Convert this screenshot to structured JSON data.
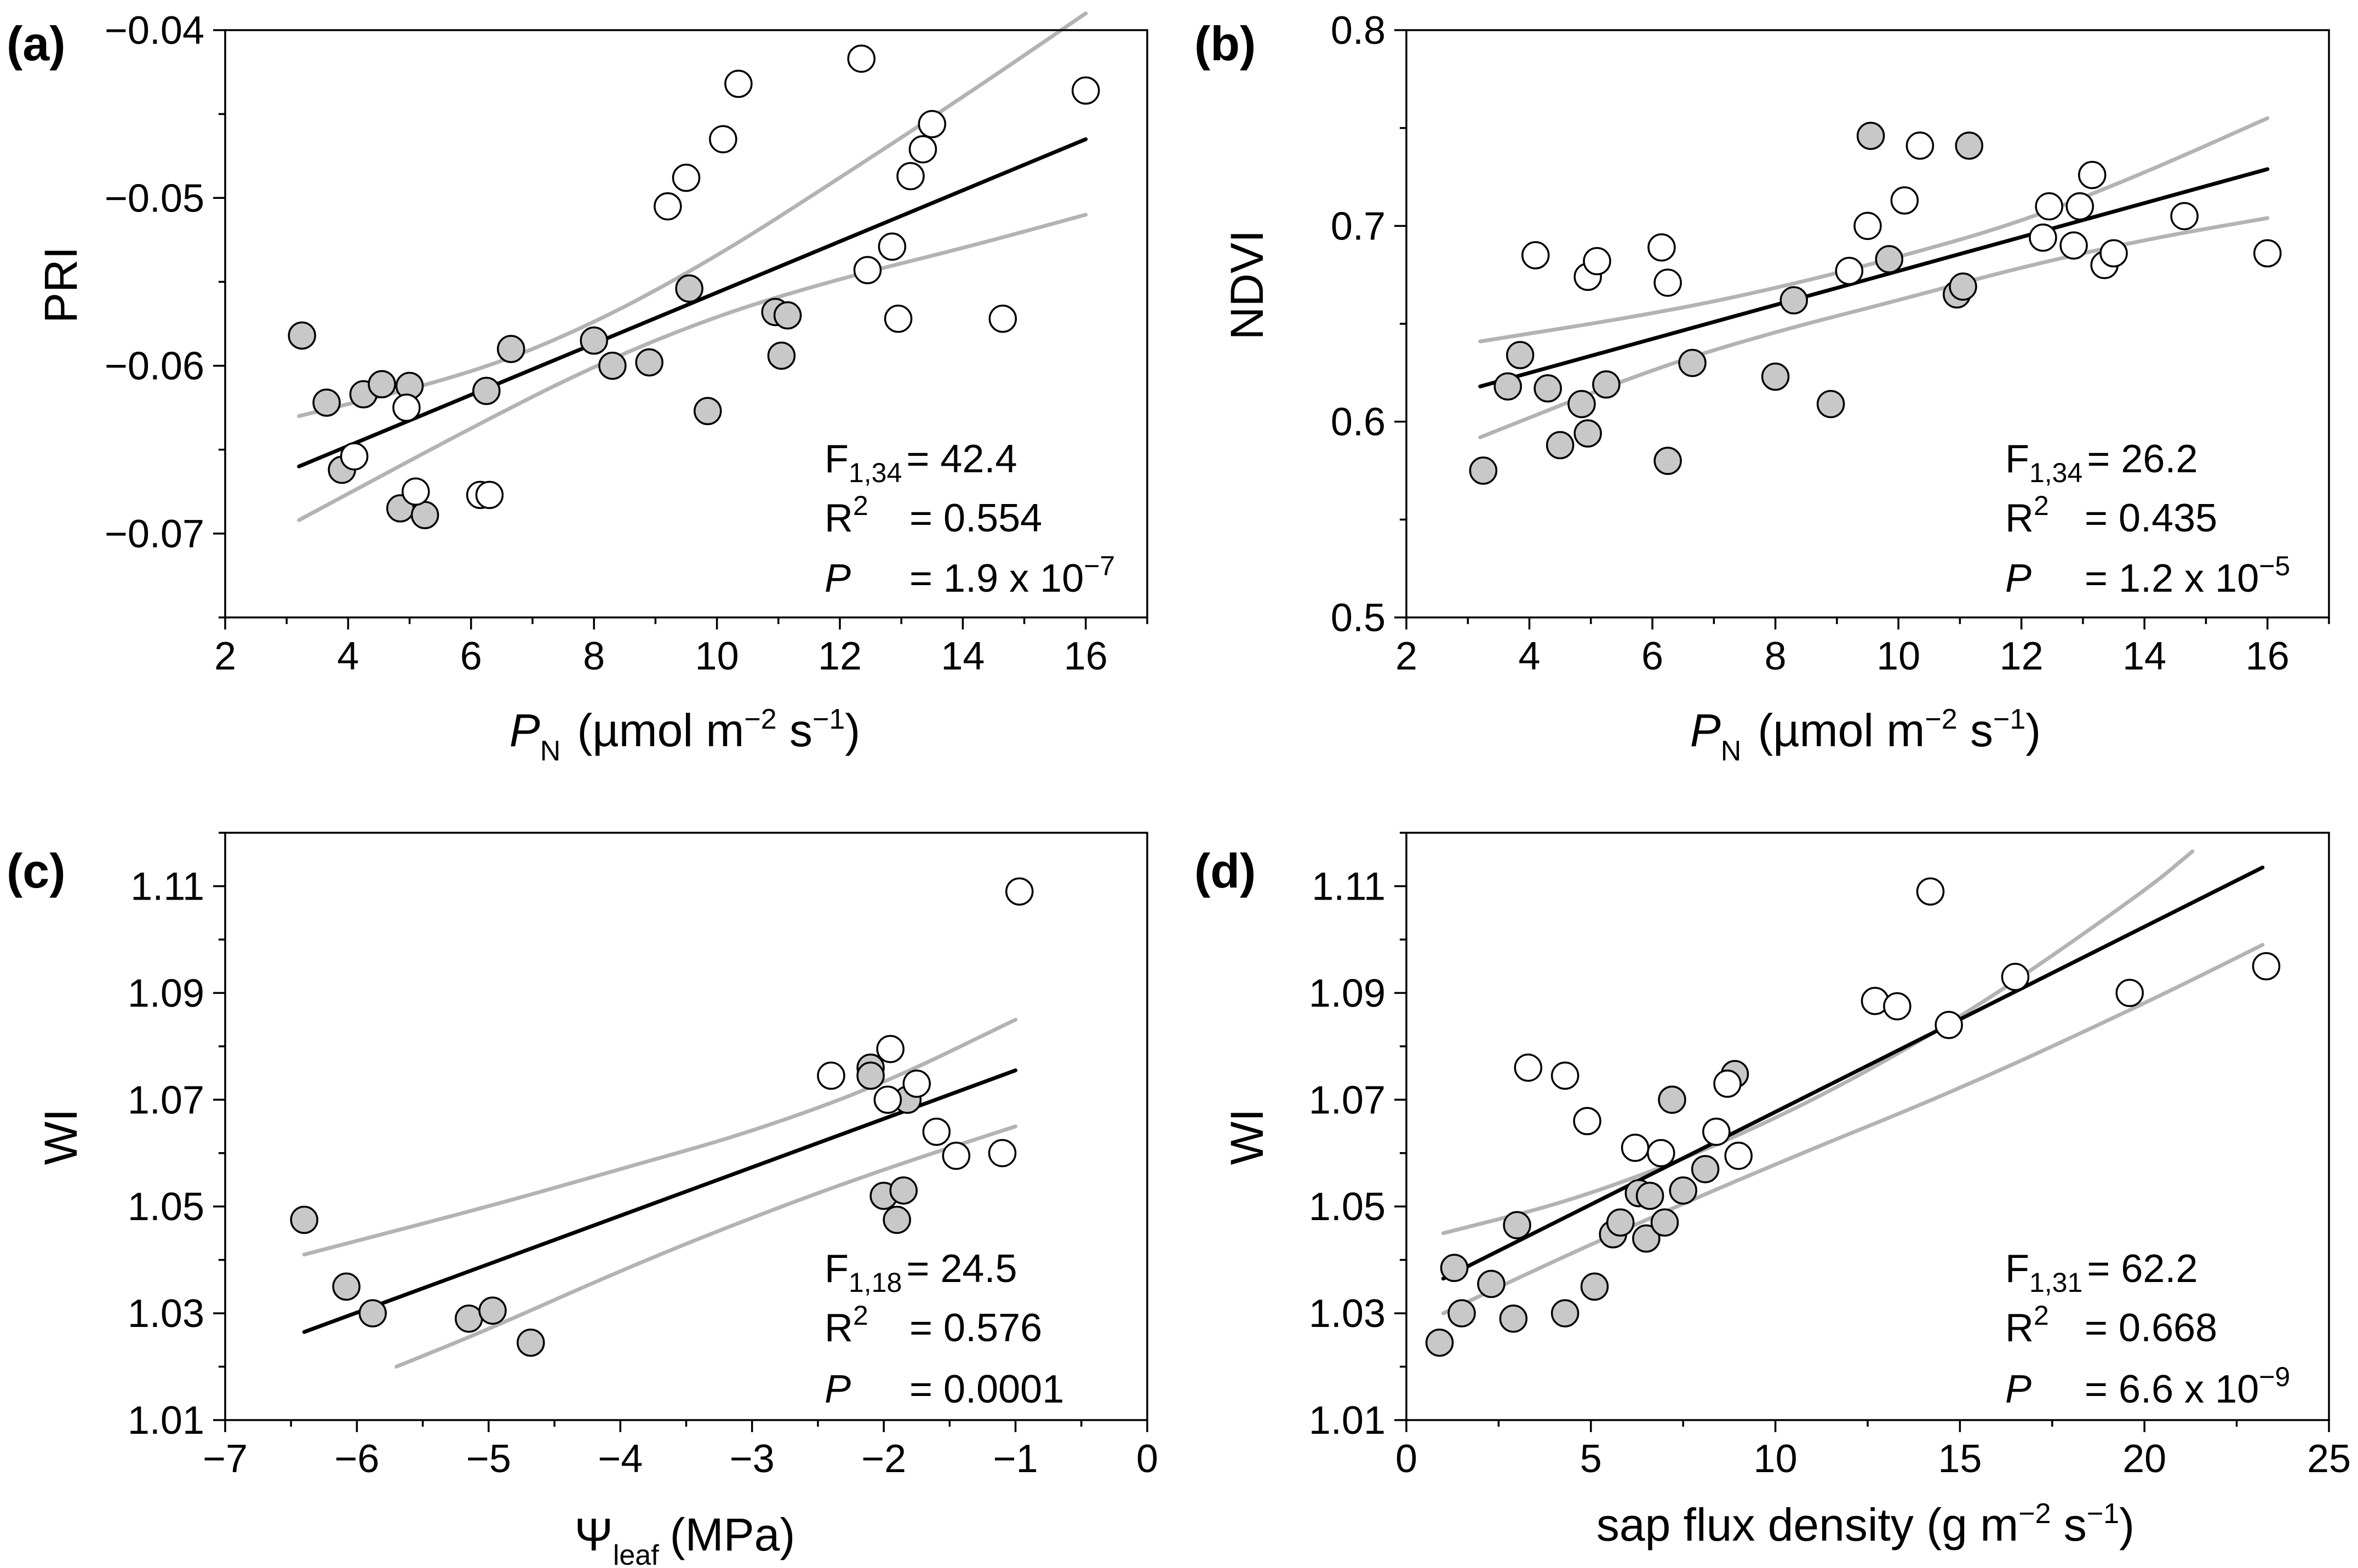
{
  "colors": {
    "open": "#ffffff",
    "filled": "#c8c8c8",
    "fit": "#000000",
    "ci": "#b3b3b3"
  },
  "chart_data": [
    {
      "panel": "(a)",
      "type": "scatter",
      "xlabel_main": "P",
      "xlabel_sub": "N",
      "xlabel_rest": "(µmol m",
      "xlabel_sup1": "−2",
      "xlabel_mid": " s",
      "xlabel_sup2": "−1",
      "xlabel_end": ")",
      "ylabel": "PRI",
      "xlim": [
        2,
        17
      ],
      "ylim": [
        -0.075,
        -0.04
      ],
      "xticks": [
        2,
        4,
        6,
        8,
        10,
        12,
        14,
        16
      ],
      "xtick_labels": [
        "2",
        "4",
        "6",
        "8",
        "10",
        "12",
        "14",
        "16"
      ],
      "yticks": [
        -0.07,
        -0.06,
        -0.05,
        -0.04
      ],
      "ytick_labels": [
        "−0.07",
        "−0.06",
        "−0.05",
        "−0.04"
      ],
      "stats": {
        "f_label": "F",
        "f_sub": "1,34",
        "f_value": "= 42.4",
        "r_label": "R",
        "r_sup": "2",
        "r_value": "= 0.554",
        "p_label": "P",
        "p_value": "= 1.9 x 10",
        "p_sup": "−7"
      },
      "fit": {
        "x": [
          3.2,
          16.0
        ],
        "y": [
          -0.066,
          -0.0465
        ]
      },
      "ci_upper": {
        "x": [
          3.2,
          6,
          8,
          10,
          12,
          14,
          16
        ],
        "y": [
          -0.063,
          -0.0605,
          -0.0575,
          -0.0535,
          -0.0488,
          -0.044,
          -0.039
        ]
      },
      "ci_lower": {
        "x": [
          3.2,
          6,
          8,
          10,
          12,
          14,
          16
        ],
        "y": [
          -0.0692,
          -0.0637,
          -0.06,
          -0.057,
          -0.0548,
          -0.053,
          -0.051
        ]
      },
      "series": [
        {
          "name": "filled",
          "points": [
            [
              3.25,
              -0.0582
            ],
            [
              3.65,
              -0.0622
            ],
            [
              3.9,
              -0.0662
            ],
            [
              4.25,
              -0.0617
            ],
            [
              4.55,
              -0.0611
            ],
            [
              4.85,
              -0.0685
            ],
            [
              5.0,
              -0.0612
            ],
            [
              5.25,
              -0.0689
            ],
            [
              6.25,
              -0.0615
            ],
            [
              6.65,
              -0.059
            ],
            [
              8.0,
              -0.0585
            ],
            [
              8.3,
              -0.06
            ],
            [
              8.9,
              -0.0598
            ],
            [
              9.55,
              -0.0554
            ],
            [
              9.85,
              -0.0627
            ],
            [
              10.95,
              -0.0568
            ],
            [
              11.05,
              -0.0594
            ],
            [
              11.15,
              -0.057
            ]
          ]
        },
        {
          "name": "open",
          "points": [
            [
              4.1,
              -0.0654
            ],
            [
              4.95,
              -0.0625
            ],
            [
              5.1,
              -0.0675
            ],
            [
              6.15,
              -0.0677
            ],
            [
              6.3,
              -0.0677
            ],
            [
              9.2,
              -0.0505
            ],
            [
              9.5,
              -0.0488
            ],
            [
              10.1,
              -0.0465
            ],
            [
              10.35,
              -0.0432
            ],
            [
              12.35,
              -0.0417
            ],
            [
              12.45,
              -0.0543
            ],
            [
              12.85,
              -0.0529
            ],
            [
              12.95,
              -0.0572
            ],
            [
              13.15,
              -0.0487
            ],
            [
              13.35,
              -0.0471
            ],
            [
              13.5,
              -0.0456
            ],
            [
              14.65,
              -0.0572
            ],
            [
              16.0,
              -0.0436
            ]
          ]
        }
      ]
    },
    {
      "panel": "(b)",
      "type": "scatter",
      "xlabel_main": "P",
      "xlabel_sub": "N",
      "xlabel_rest": "(µmol m",
      "xlabel_sup1": "−2",
      "xlabel_mid": " s",
      "xlabel_sup2": "−1",
      "xlabel_end": ")",
      "ylabel": "NDVI",
      "xlim": [
        2,
        17
      ],
      "ylim": [
        0.5,
        0.8
      ],
      "xticks": [
        2,
        4,
        6,
        8,
        10,
        12,
        14,
        16
      ],
      "xtick_labels": [
        "2",
        "4",
        "6",
        "8",
        "10",
        "12",
        "14",
        "16"
      ],
      "yticks": [
        0.5,
        0.6,
        0.7,
        0.8
      ],
      "ytick_labels": [
        "0.5",
        "0.6",
        "0.7",
        "0.8"
      ],
      "stats": {
        "f_label": "F",
        "f_sub": "1,34",
        "f_value": "= 26.2",
        "r_label": "R",
        "r_sup": "2",
        "r_value": "= 0.435",
        "p_label": "P",
        "p_value": "= 1.2 x 10",
        "p_sup": "−5"
      },
      "fit": {
        "x": [
          3.2,
          16.0
        ],
        "y": [
          0.618,
          0.729
        ]
      },
      "ci_upper": {
        "x": [
          3.2,
          6,
          8,
          10,
          12,
          14,
          16
        ],
        "y": [
          0.641,
          0.655,
          0.668,
          0.684,
          0.702,
          0.727,
          0.755
        ]
      },
      "ci_lower": {
        "x": [
          3.2,
          6,
          8,
          10,
          12,
          14,
          16
        ],
        "y": [
          0.592,
          0.627,
          0.646,
          0.662,
          0.679,
          0.693,
          0.704
        ]
      },
      "series": [
        {
          "name": "filled",
          "points": [
            [
              3.25,
              0.575
            ],
            [
              3.65,
              0.618
            ],
            [
              3.85,
              0.634
            ],
            [
              4.3,
              0.617
            ],
            [
              4.5,
              0.588
            ],
            [
              4.85,
              0.609
            ],
            [
              4.95,
              0.594
            ],
            [
              5.25,
              0.619
            ],
            [
              6.25,
              0.58
            ],
            [
              6.65,
              0.63
            ],
            [
              8.0,
              0.623
            ],
            [
              8.3,
              0.662
            ],
            [
              8.9,
              0.609
            ],
            [
              9.55,
              0.746
            ],
            [
              9.85,
              0.683
            ],
            [
              10.95,
              0.665
            ],
            [
              11.05,
              0.669
            ],
            [
              11.15,
              0.741
            ]
          ]
        },
        {
          "name": "open",
          "points": [
            [
              4.1,
              0.685
            ],
            [
              4.95,
              0.674
            ],
            [
              5.1,
              0.682
            ],
            [
              6.15,
              0.689
            ],
            [
              6.25,
              0.671
            ],
            [
              9.2,
              0.677
            ],
            [
              9.5,
              0.7
            ],
            [
              10.1,
              0.713
            ],
            [
              10.35,
              0.741
            ],
            [
              12.35,
              0.694
            ],
            [
              12.45,
              0.71
            ],
            [
              12.85,
              0.69
            ],
            [
              12.95,
              0.71
            ],
            [
              13.15,
              0.726
            ],
            [
              13.35,
              0.68
            ],
            [
              13.5,
              0.686
            ],
            [
              14.65,
              0.705
            ],
            [
              16.0,
              0.686
            ]
          ]
        }
      ]
    },
    {
      "panel": "(c)",
      "type": "scatter",
      "xlabel_main": "Ψ",
      "xlabel_sub": "leaf",
      "xlabel_rest": "(MPa)",
      "ylabel": "WI",
      "xlim": [
        -7,
        0
      ],
      "ylim": [
        1.01,
        1.12
      ],
      "xticks": [
        -7,
        -6,
        -5,
        -4,
        -3,
        -2,
        -1,
        0
      ],
      "xtick_labels": [
        "−7",
        "−6",
        "−5",
        "−4",
        "−3",
        "−2",
        "−1",
        "0"
      ],
      "yticks": [
        1.01,
        1.03,
        1.05,
        1.07,
        1.09,
        1.11
      ],
      "ytick_labels": [
        "1.01",
        "1.03",
        "1.05",
        "1.07",
        "1.09",
        "1.11"
      ],
      "stats": {
        "f_label": "F",
        "f_sub": "1,18",
        "f_value": "= 24.5",
        "r_label": "R",
        "r_sup": "2",
        "r_value": "= 0.576",
        "p_label": "P",
        "p_value": "= 0.0001",
        "p_sup": ""
      },
      "fit": {
        "x": [
          -6.4,
          -1.0
        ],
        "y": [
          1.0265,
          1.0755
        ]
      },
      "ci_upper": {
        "x": [
          -6.4,
          -5,
          -4,
          -3,
          -2,
          -1
        ],
        "y": [
          1.041,
          1.05,
          1.057,
          1.064,
          1.073,
          1.085
        ]
      },
      "ci_lower": {
        "x": [
          -5.7,
          -5,
          -4,
          -3,
          -2,
          -1
        ],
        "y": [
          1.02,
          1.027,
          1.038,
          1.048,
          1.057,
          1.065
        ]
      },
      "series": [
        {
          "name": "filled",
          "points": [
            [
              -6.4,
              1.0475
            ],
            [
              -6.08,
              1.035
            ],
            [
              -5.88,
              1.03
            ],
            [
              -5.15,
              1.029
            ],
            [
              -4.97,
              1.0305
            ],
            [
              -4.68,
              1.0245
            ],
            [
              -2.1,
              1.076
            ],
            [
              -2.1,
              1.0745
            ],
            [
              -2.0,
              1.052
            ],
            [
              -1.9,
              1.0475
            ],
            [
              -1.85,
              1.053
            ],
            [
              -1.82,
              1.07
            ]
          ]
        },
        {
          "name": "open",
          "points": [
            [
              -2.4,
              1.0745
            ],
            [
              -1.95,
              1.0795
            ],
            [
              -1.97,
              1.07
            ],
            [
              -1.75,
              1.073
            ],
            [
              -1.6,
              1.064
            ],
            [
              -1.45,
              1.0595
            ],
            [
              -1.1,
              1.06
            ],
            [
              -0.97,
              1.109
            ]
          ]
        }
      ]
    },
    {
      "panel": "(d)",
      "type": "scatter",
      "xlabel_main": "sap flux density (g m",
      "xlabel_sup1": "−2",
      "xlabel_mid": " s",
      "xlabel_sup2": "−1",
      "xlabel_end": ")",
      "ylabel": "WI",
      "xlim": [
        0,
        25
      ],
      "ylim": [
        1.01,
        1.12
      ],
      "xticks": [
        0,
        5,
        10,
        15,
        20,
        25
      ],
      "xtick_labels": [
        "0",
        "5",
        "10",
        "15",
        "20",
        "25"
      ],
      "yticks": [
        1.01,
        1.03,
        1.05,
        1.07,
        1.09,
        1.11
      ],
      "ytick_labels": [
        "1.01",
        "1.03",
        "1.05",
        "1.07",
        "1.09",
        "1.11"
      ],
      "stats": {
        "f_label": "F",
        "f_sub": "1,31",
        "f_value": "= 62.2",
        "r_label": "R",
        "r_sup": "2",
        "r_value": "= 0.668",
        "p_label": "P",
        "p_value": "= 6.6 x 10",
        "p_sup": "−9"
      },
      "fit": {
        "x": [
          1.0,
          23.2
        ],
        "y": [
          1.0365,
          1.1135
        ]
      },
      "ci_upper": {
        "x": [
          1.0,
          5,
          10,
          15,
          20,
          21.3
        ],
        "y": [
          1.045,
          1.052,
          1.066,
          1.085,
          1.109,
          1.1165
        ]
      },
      "ci_lower": {
        "x": [
          1.0,
          5,
          10,
          15,
          20,
          23.2
        ],
        "y": [
          1.03,
          1.043,
          1.058,
          1.072,
          1.088,
          1.099
        ]
      },
      "series": [
        {
          "name": "filled",
          "points": [
            [
              0.9,
              1.0245
            ],
            [
              1.3,
              1.0385
            ],
            [
              1.5,
              1.03
            ],
            [
              2.3,
              1.0355
            ],
            [
              2.9,
              1.029
            ],
            [
              3.0,
              1.0465
            ],
            [
              4.3,
              1.03
            ],
            [
              5.1,
              1.035
            ],
            [
              5.6,
              1.0448
            ],
            [
              5.8,
              1.047
            ],
            [
              6.3,
              1.0525
            ],
            [
              6.5,
              1.044
            ],
            [
              6.6,
              1.052
            ],
            [
              7.0,
              1.047
            ],
            [
              7.2,
              1.07
            ],
            [
              7.5,
              1.053
            ],
            [
              8.1,
              1.057
            ],
            [
              8.9,
              1.0748
            ]
          ]
        },
        {
          "name": "open",
          "points": [
            [
              3.3,
              1.076
            ],
            [
              4.3,
              1.0745
            ],
            [
              4.9,
              1.066
            ],
            [
              6.2,
              1.061
            ],
            [
              6.9,
              1.06
            ],
            [
              8.4,
              1.064
            ],
            [
              8.7,
              1.073
            ],
            [
              9.0,
              1.0595
            ],
            [
              12.7,
              1.0885
            ],
            [
              13.3,
              1.0875
            ],
            [
              14.2,
              1.109
            ],
            [
              14.7,
              1.084
            ],
            [
              16.5,
              1.093
            ],
            [
              19.6,
              1.09
            ],
            [
              23.3,
              1.095
            ]
          ]
        }
      ]
    }
  ]
}
